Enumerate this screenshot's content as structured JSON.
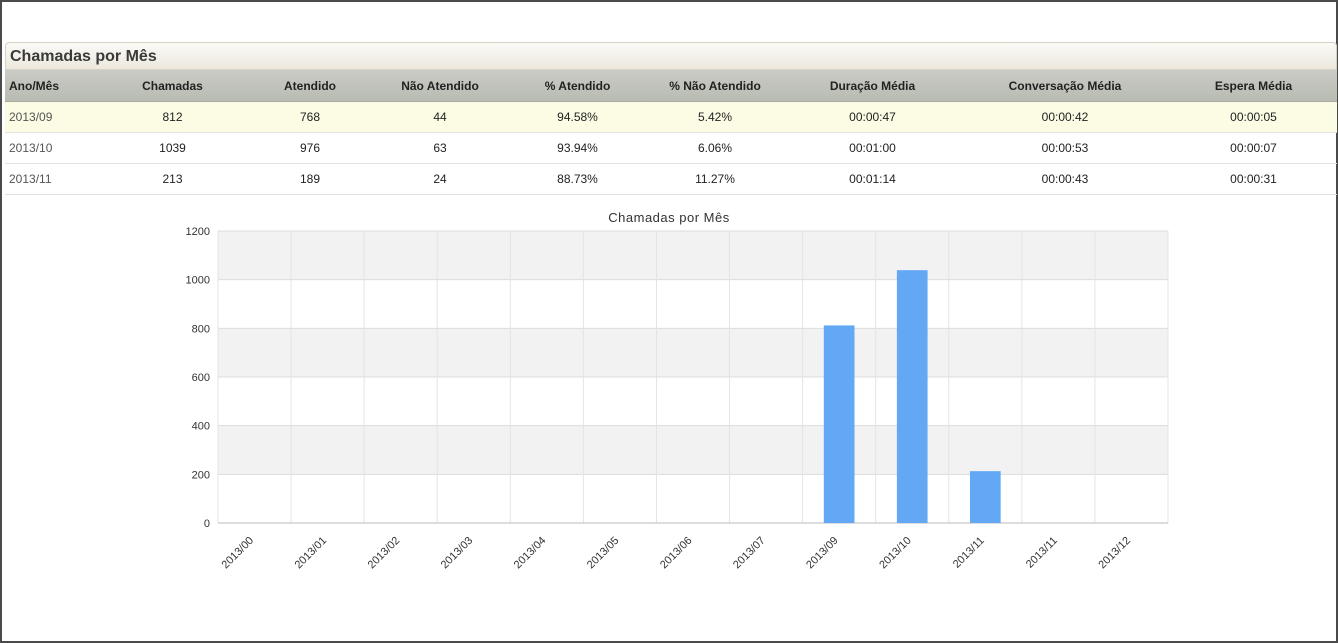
{
  "panel": {
    "title": "Chamadas por Mês"
  },
  "table": {
    "headers": [
      "Ano/Mês",
      "Chamadas",
      "Atendido",
      "Não Atendido",
      "% Atendido",
      "% Não Atendido",
      "Duração Média",
      "Conversação Média",
      "Espera Média"
    ],
    "rows": [
      [
        "2013/09",
        "812",
        "768",
        "44",
        "94.58%",
        "5.42%",
        "00:00:47",
        "00:00:42",
        "00:00:05"
      ],
      [
        "2013/10",
        "1039",
        "976",
        "63",
        "93.94%",
        "6.06%",
        "00:01:00",
        "00:00:53",
        "00:00:07"
      ],
      [
        "2013/11",
        "213",
        "189",
        "24",
        "88.73%",
        "11.27%",
        "00:01:14",
        "00:00:43",
        "00:00:31"
      ]
    ]
  },
  "chart_data": {
    "type": "bar",
    "title": "Chamadas por Mês",
    "categories": [
      "2013/00",
      "2013/01",
      "2013/02",
      "2013/03",
      "2013/04",
      "2013/05",
      "2013/06",
      "2013/07",
      "2013/09",
      "2013/10",
      "2013/11",
      "2013/11",
      "2013/12"
    ],
    "values": [
      0,
      0,
      0,
      0,
      0,
      0,
      0,
      0,
      812,
      1039,
      213,
      0,
      0
    ],
    "ylim": [
      0,
      1200
    ],
    "yticks": [
      0,
      200,
      400,
      600,
      800,
      1000,
      1200
    ],
    "grid": true,
    "color": "#62a8f5"
  }
}
